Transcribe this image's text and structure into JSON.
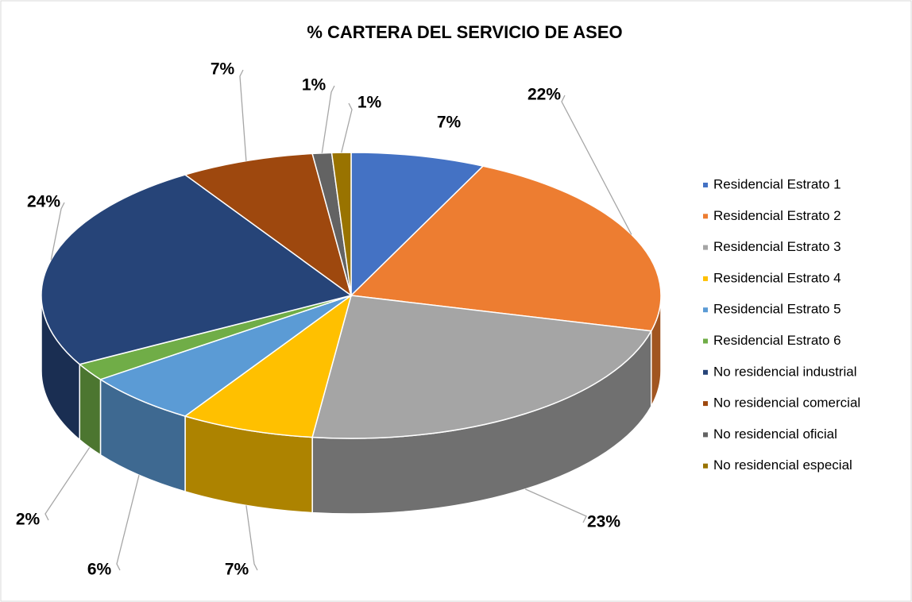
{
  "chart_data": {
    "type": "pie",
    "title": "% CARTERA DEL SERVICIO DE ASEO",
    "categories": [
      "Residencial Estrato 1",
      "Residencial Estrato 2",
      "Residencial Estrato 3",
      "Residencial Estrato 4",
      "Residencial Estrato 5",
      "Residencial Estrato 6",
      "No residencial industrial",
      "No residencial comercial",
      "No residencial oficial",
      "No residencial especial"
    ],
    "values": [
      7,
      22,
      23,
      7,
      6,
      2,
      24,
      7,
      1,
      1
    ],
    "value_labels": [
      "7%",
      "22%",
      "23%",
      "7%",
      "6%",
      "2%",
      "24%",
      "7%",
      "1%",
      "1%"
    ],
    "colors": [
      "#4472c4",
      "#ed7d31",
      "#a5a5a5",
      "#ffc000",
      "#5b9bd5",
      "#70ad47",
      "#264478",
      "#9e480e",
      "#636363",
      "#997300"
    ],
    "legend": "right"
  }
}
